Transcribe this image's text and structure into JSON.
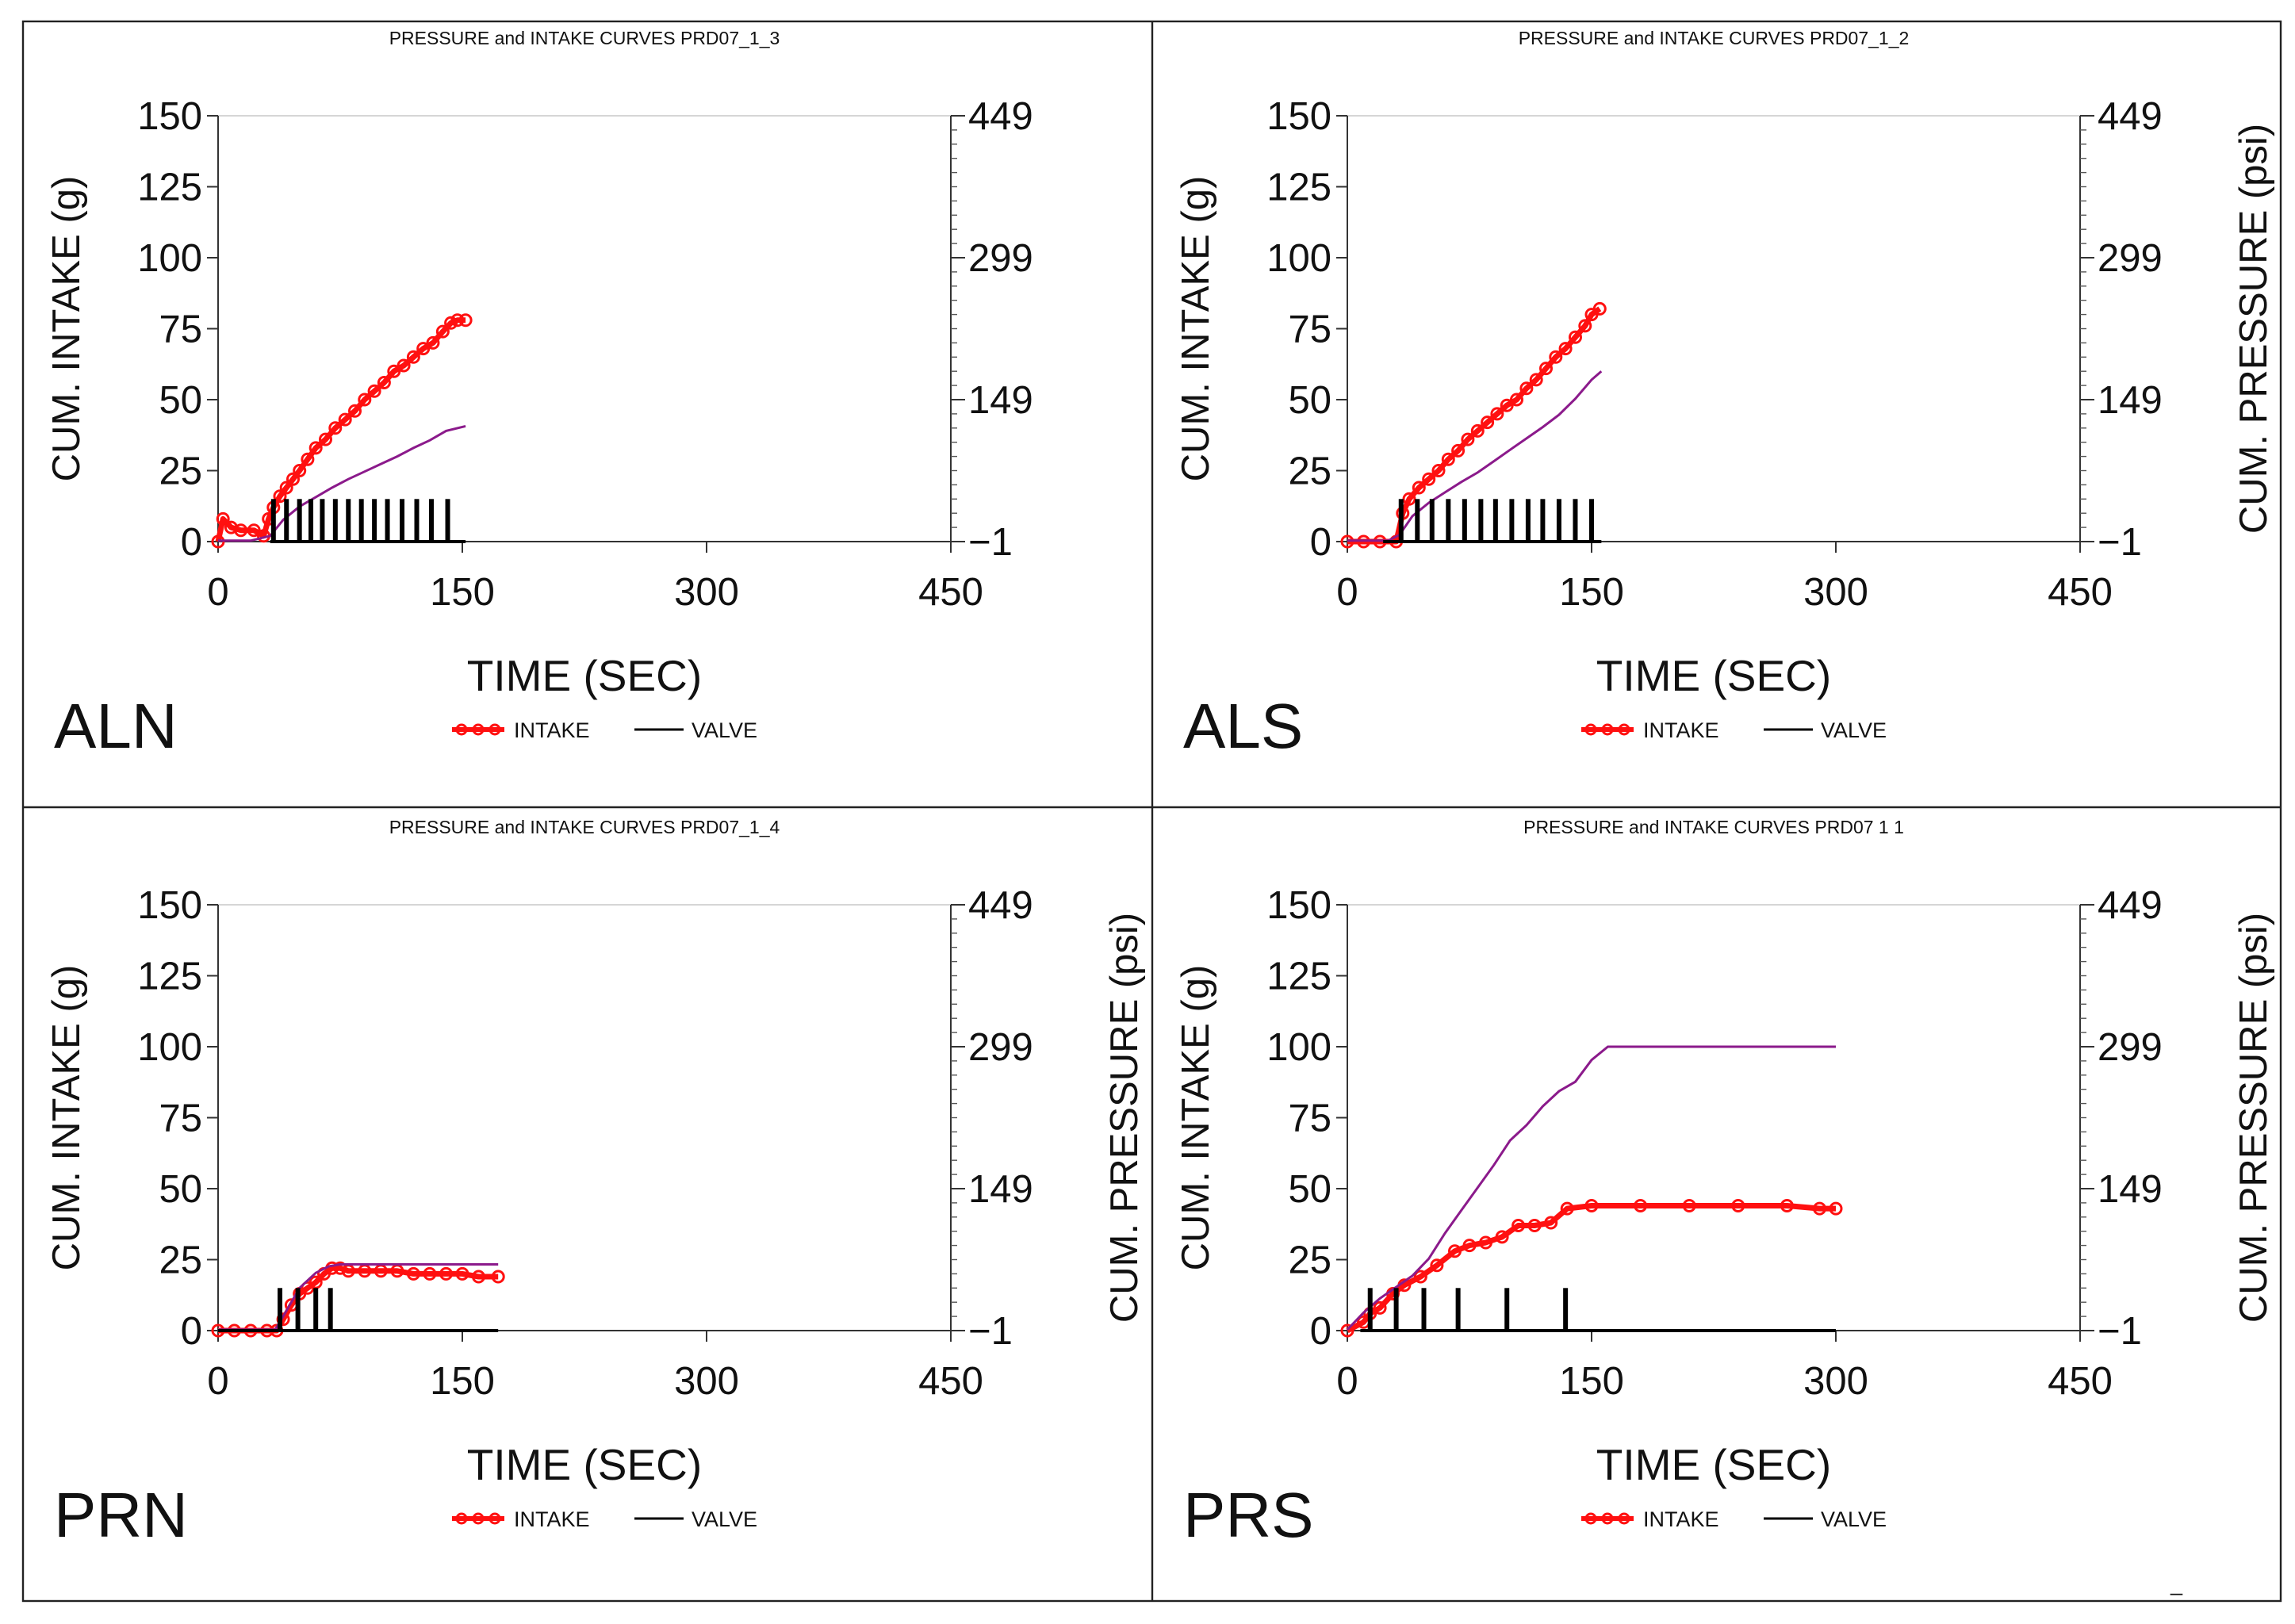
{
  "figure_colors": {
    "intake": "#ff1010",
    "pressure": "#8b1a8b",
    "valve": "#000000"
  },
  "chart_data": [
    {
      "type": "line",
      "title": "PRESSURE and INTAKE CURVES PRD07_1_3",
      "panel_label": "ALN",
      "xlabel": "TIME (SEC)",
      "ylabel": "CUM. INTAKE (g)",
      "y2label": "",
      "xlim": [
        0,
        450
      ],
      "ylim": [
        0,
        150
      ],
      "y2lim": [
        -1,
        449
      ],
      "x_ticks": [
        "0",
        "150",
        "300",
        "450"
      ],
      "y_ticks": [
        "0",
        "25",
        "50",
        "75",
        "100",
        "125",
        "150"
      ],
      "y2_ticks": [
        "−1",
        "149",
        "299",
        "449"
      ],
      "legend": [
        "INTAKE",
        "VALVE"
      ],
      "series": [
        {
          "name": "INTAKE",
          "style": "markers-line",
          "x": [
            0,
            3,
            8,
            14,
            22,
            28,
            31,
            34,
            38,
            42,
            46,
            50,
            55,
            60,
            66,
            72,
            78,
            84,
            90,
            96,
            102,
            108,
            114,
            120,
            126,
            132,
            138,
            143,
            147,
            152
          ],
          "y": [
            0,
            8,
            5,
            4,
            4,
            2,
            8,
            12,
            16,
            19,
            22,
            25,
            29,
            33,
            36,
            40,
            43,
            46,
            50,
            53,
            56,
            60,
            62,
            65,
            68,
            70,
            74,
            77,
            78,
            78
          ]
        },
        {
          "name": "",
          "style": "line",
          "axis": "y2",
          "x": [
            0,
            20,
            32,
            40,
            50,
            60,
            70,
            80,
            90,
            100,
            110,
            120,
            130,
            140,
            152
          ],
          "y": [
            0,
            0,
            5,
            22,
            36,
            46,
            56,
            65,
            73,
            81,
            89,
            98,
            106,
            116,
            121
          ]
        },
        {
          "name": "VALVE",
          "style": "pulses",
          "x_range": [
            32,
            152
          ],
          "height": 15,
          "pulse_x": [
            34,
            42,
            50,
            57,
            64,
            72,
            80,
            88,
            96,
            104,
            113,
            122,
            131,
            141
          ]
        }
      ]
    },
    {
      "type": "line",
      "title": "PRESSURE and INTAKE CURVES PRD07_1_2",
      "panel_label": "ALS",
      "xlabel": "TIME (SEC)",
      "ylabel": "CUM. INTAKE (g)",
      "y2label": "CUM. PRESSURE (psi)",
      "xlim": [
        0,
        450
      ],
      "ylim": [
        0,
        150
      ],
      "y2lim": [
        -1,
        449
      ],
      "x_ticks": [
        "0",
        "150",
        "300",
        "450"
      ],
      "y_ticks": [
        "0",
        "25",
        "50",
        "75",
        "100",
        "125",
        "150"
      ],
      "y2_ticks": [
        "−1",
        "149",
        "299",
        "449"
      ],
      "legend": [
        "INTAKE",
        "VALVE"
      ],
      "series": [
        {
          "name": "INTAKE",
          "style": "markers-line",
          "x": [
            0,
            10,
            20,
            30,
            34,
            38,
            44,
            50,
            56,
            62,
            68,
            74,
            80,
            86,
            92,
            98,
            104,
            110,
            116,
            122,
            128,
            134,
            140,
            146,
            150,
            155
          ],
          "y": [
            0,
            0,
            0,
            0,
            10,
            15,
            19,
            22,
            25,
            29,
            32,
            36,
            39,
            42,
            45,
            48,
            50,
            54,
            57,
            61,
            65,
            68,
            72,
            76,
            80,
            82
          ]
        },
        {
          "name": "",
          "style": "line",
          "axis": "y2",
          "x": [
            0,
            25,
            32,
            40,
            50,
            60,
            70,
            80,
            90,
            100,
            110,
            120,
            130,
            140,
            150,
            156
          ],
          "y": [
            0,
            0,
            6,
            26,
            40,
            51,
            62,
            72,
            84,
            96,
            108,
            120,
            133,
            150,
            170,
            179
          ]
        },
        {
          "name": "VALVE",
          "style": "pulses",
          "x_range": [
            22,
            156
          ],
          "height": 15,
          "pulse_x": [
            33,
            43,
            52,
            62,
            72,
            82,
            91,
            101,
            111,
            120,
            130,
            140,
            150
          ]
        }
      ]
    },
    {
      "type": "line",
      "title": "PRESSURE and INTAKE CURVES PRD07_1_4",
      "panel_label": "PRN",
      "xlabel": "TIME (SEC)",
      "ylabel": "CUM. INTAKE (g)",
      "y2label": "CUM. PRESSURE (psi)",
      "xlim": [
        0,
        450
      ],
      "ylim": [
        0,
        150
      ],
      "y2lim": [
        -1,
        449
      ],
      "x_ticks": [
        "0",
        "150",
        "300",
        "450"
      ],
      "y_ticks": [
        "0",
        "25",
        "50",
        "75",
        "100",
        "125",
        "150"
      ],
      "y2_ticks": [
        "−1",
        "149",
        "299",
        "449"
      ],
      "legend": [
        "INTAKE",
        "VALVE"
      ],
      "series": [
        {
          "name": "INTAKE",
          "style": "markers-line",
          "x": [
            0,
            10,
            20,
            30,
            36,
            40,
            45,
            50,
            55,
            60,
            65,
            70,
            75,
            80,
            90,
            100,
            110,
            120,
            130,
            140,
            150,
            160,
            172
          ],
          "y": [
            0,
            0,
            0,
            0,
            0,
            4,
            9,
            13,
            15,
            17,
            20,
            22,
            22,
            21,
            21,
            21,
            21,
            20,
            20,
            20,
            20,
            19,
            19
          ]
        },
        {
          "name": "",
          "style": "line",
          "axis": "y2",
          "x": [
            0,
            35,
            40,
            50,
            60,
            68,
            75,
            90,
            110,
            140,
            172
          ],
          "y": [
            0,
            0,
            14,
            44,
            60,
            67,
            69,
            69,
            69,
            69,
            69
          ]
        },
        {
          "name": "VALVE",
          "style": "pulses",
          "x_range": [
            0,
            172
          ],
          "height": 15,
          "pulse_x": [
            38,
            49,
            60,
            69
          ]
        }
      ]
    },
    {
      "type": "line",
      "title": "PRESSURE and INTAKE CURVES PRD07 1 1",
      "panel_label": "PRS",
      "xlabel": "TIME (SEC)",
      "ylabel": "CUM. INTAKE (g)",
      "y2label": "CUM. PRESSURE (psi)",
      "xlim": [
        0,
        450
      ],
      "ylim": [
        0,
        150
      ],
      "y2lim": [
        -1,
        449
      ],
      "x_ticks": [
        "0",
        "150",
        "300",
        "450"
      ],
      "y_ticks": [
        "0",
        "25",
        "50",
        "75",
        "100",
        "125",
        "150"
      ],
      "y2_ticks": [
        "−1",
        "149",
        "299",
        "449"
      ],
      "legend": [
        "INTAKE",
        "VALVE"
      ],
      "series": [
        {
          "name": "INTAKE",
          "style": "markers-line",
          "x": [
            0,
            10,
            14,
            20,
            28,
            35,
            45,
            55,
            66,
            75,
            85,
            95,
            105,
            115,
            125,
            135,
            150,
            180,
            210,
            240,
            270,
            290,
            300
          ],
          "y": [
            0,
            3,
            6,
            8,
            13,
            16,
            19,
            23,
            28,
            30,
            31,
            33,
            37,
            37,
            38,
            43,
            44,
            44,
            44,
            44,
            44,
            43,
            43
          ]
        },
        {
          "name": "",
          "style": "line",
          "axis": "y2",
          "x": [
            0,
            10,
            20,
            30,
            40,
            50,
            60,
            70,
            80,
            90,
            100,
            110,
            120,
            130,
            140,
            150,
            160,
            200,
            250,
            300
          ],
          "y": [
            0,
            18,
            33,
            45,
            57,
            75,
            102,
            126,
            150,
            174,
            200,
            216,
            236,
            252,
            262,
            285,
            299,
            299,
            299,
            299
          ]
        },
        {
          "name": "VALVE",
          "style": "pulses",
          "x_range": [
            8,
            300
          ],
          "height": 15,
          "pulse_x": [
            14,
            30,
            47,
            68,
            98,
            134
          ]
        }
      ]
    }
  ],
  "corner_mark": "_"
}
